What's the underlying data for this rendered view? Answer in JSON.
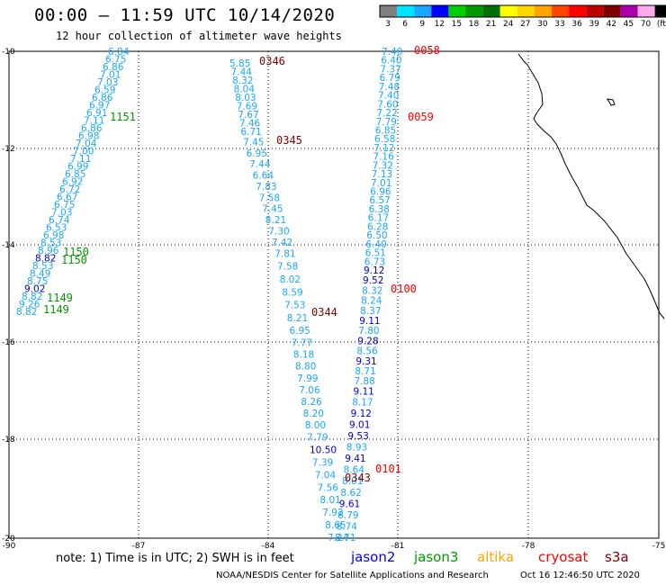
{
  "title": "00:00 – 11:59 UTC 10/14/2020",
  "subtitle": "12 hour collection of altimeter wave heights",
  "legend": {
    "labels": [
      "3",
      "6",
      "9",
      "12",
      "15",
      "18",
      "21",
      "24",
      "27",
      "30",
      "33",
      "36",
      "39",
      "42",
      "45",
      "70",
      "(ft)"
    ],
    "colors": [
      "#7f7f7f",
      "#00e5ff",
      "#19a7ff",
      "#0000ff",
      "#00d000",
      "#009a00",
      "#007000",
      "#ffff00",
      "#ffd700",
      "#ffa500",
      "#ff4500",
      "#ff0000",
      "#c00000",
      "#800000",
      "#aa00aa",
      "#ffaaee",
      "#000000"
    ]
  },
  "axes": {
    "lat_ticks": [
      "-10",
      "-12",
      "-14",
      "-16",
      "-18",
      "-20"
    ],
    "lon_ticks": [
      "-90",
      "-87",
      "-84",
      "-81",
      "-78",
      "-75"
    ]
  },
  "tracks": [
    {
      "name": "track-a",
      "color": "#19a7ff",
      "values": [
        "6.84",
        "6.75",
        "6.86",
        "7.01",
        "7.03",
        "6.59",
        "6.86",
        "6.97",
        "6.91",
        "7.11",
        "6.86",
        "6.98",
        "7.04",
        "7.00",
        "7.11",
        "6.99",
        "6.85",
        "6.92",
        "6.72",
        "6.67",
        "6.75",
        "7.03",
        "6.74",
        "6.53",
        "6.98",
        "8.53",
        "8.96",
        "8.82",
        "8.53",
        "8.49",
        "8.75",
        "9.02",
        "8.82",
        "9.26",
        "8.82"
      ],
      "dark": [
        27,
        31
      ]
    },
    {
      "name": "track-b",
      "color": "#19a7ff",
      "values": [
        "5.85",
        "7.44",
        "8.32",
        "8.04",
        "8.03",
        "7.69",
        "7.67",
        "7.46",
        "6.71",
        "7.45",
        "6.95",
        "7.44",
        "6.64",
        "7.83",
        "7.58",
        "7.45",
        "8.21",
        "7.30",
        "7.42",
        "7.81",
        "7.58",
        "8.02",
        "8.59",
        "7.53",
        "8.21",
        "6.95",
        "7.77",
        "8.18",
        "8.80",
        "7.99",
        "7.06",
        "8.26",
        "8.20",
        "8.00",
        "7.79",
        "10.50",
        "7.39",
        "7.04",
        "7.56",
        "8.01",
        "7.92",
        "8.65",
        "7.24"
      ],
      "dark": [
        35
      ]
    },
    {
      "name": "track-c",
      "color": "#19a7ff",
      "values": [
        "7.40",
        "6.40",
        "7.37",
        "6.79",
        "7.48",
        "7.40",
        "7.60",
        "7.22",
        "7.79",
        "6.85",
        "6.58",
        "7.12",
        "7.16",
        "7.32",
        "7.13",
        "7.01",
        "6.96",
        "6.57",
        "6.38",
        "6.17",
        "6.28",
        "6.50",
        "6.40",
        "6.51",
        "6.73",
        "9.12",
        "9.52",
        "8.32",
        "8.24",
        "8.37",
        "9.11",
        "7.80",
        "9.28",
        "8.56",
        "9.31",
        "8.71",
        "7.88",
        "9.11",
        "8.17",
        "9.12",
        "9.01",
        "9.53",
        "8.93",
        "9.41",
        "8.64",
        "8.01",
        "8.62",
        "9.61",
        "8.79",
        "8.74",
        "8.71"
      ],
      "dark": [
        25,
        26,
        30,
        32,
        34,
        37,
        39,
        40,
        41,
        43,
        47
      ]
    }
  ],
  "time_labels": [
    {
      "text": "1151",
      "color": "#009a00"
    },
    {
      "text": "1150",
      "color": "#009a00"
    },
    {
      "text": "1150",
      "color": "#009a00"
    },
    {
      "text": "1149",
      "color": "#009a00"
    },
    {
      "text": "1149",
      "color": "#009a00"
    },
    {
      "text": "0346",
      "color": "#800000"
    },
    {
      "text": "0345",
      "color": "#800000"
    },
    {
      "text": "0344",
      "color": "#800000"
    },
    {
      "text": "0343",
      "color": "#800000"
    },
    {
      "text": "0058",
      "color": "#ff0000"
    },
    {
      "text": "0059",
      "color": "#ff0000"
    },
    {
      "text": "0100",
      "color": "#ff0000"
    },
    {
      "text": "0101",
      "color": "#ff0000"
    }
  ],
  "note": "note: 1) Time is in UTC; 2) SWH is in feet",
  "satellites": [
    {
      "name": "jason2",
      "color": "#0000ff"
    },
    {
      "name": "jason3",
      "color": "#009a00"
    },
    {
      "name": "altika",
      "color": "#ffa500"
    },
    {
      "name": "cryosat",
      "color": "#ff0000"
    },
    {
      "name": "s3a",
      "color": "#800000"
    }
  ],
  "credit": "NOAA/NESDIS Center for Satellite Applications and Research",
  "credit_time": "Oct 16 12:46:50 UTC 2020"
}
